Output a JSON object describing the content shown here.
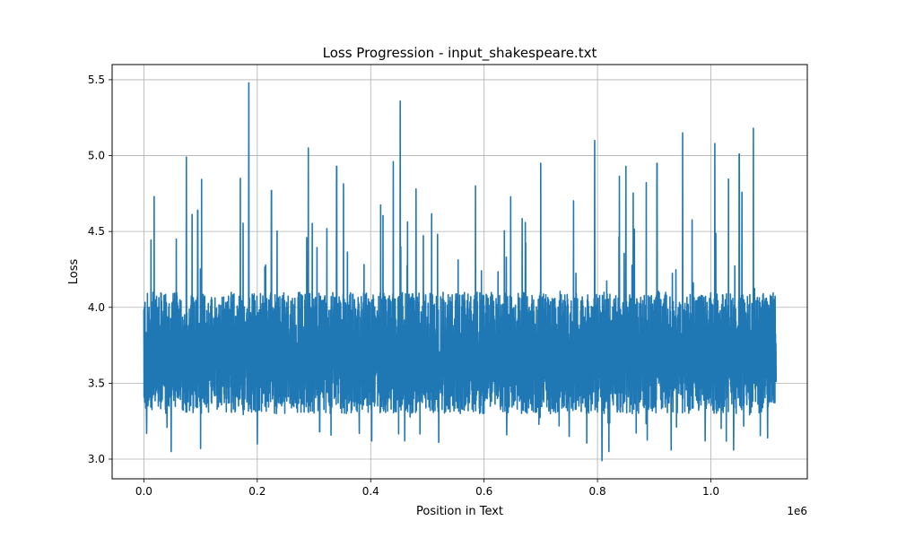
{
  "chart_data": {
    "type": "line",
    "title": "Loss Progression - input_shakespeare.txt",
    "xlabel": "Position in Text",
    "ylabel": "Loss",
    "x_offset_label": "1e6",
    "xlim": [
      -0.056,
      1.17
    ],
    "ylim": [
      2.87,
      5.6
    ],
    "x_ticks": [
      0.0,
      0.2,
      0.4,
      0.6,
      0.8,
      1.0
    ],
    "x_tick_labels": [
      "0.0",
      "0.2",
      "0.4",
      "0.6",
      "0.8",
      "1.0"
    ],
    "y_ticks": [
      3.0,
      3.5,
      4.0,
      4.5,
      5.0,
      5.5
    ],
    "y_tick_labels": [
      "3.0",
      "3.5",
      "4.0",
      "4.5",
      "5.0",
      "5.5"
    ],
    "grid": true,
    "series": [
      {
        "color": "#1f77b4",
        "x_range": [
          0.0,
          1.115
        ],
        "baseline_mean": 3.65,
        "typical_band": [
          3.3,
          4.1
        ],
        "min": 2.99,
        "max": 5.48,
        "peaks": [
          [
            0.018,
            4.73
          ],
          [
            0.075,
            4.99
          ],
          [
            0.095,
            4.64
          ],
          [
            0.17,
            4.85
          ],
          [
            0.185,
            5.48
          ],
          [
            0.225,
            4.77
          ],
          [
            0.29,
            5.05
          ],
          [
            0.34,
            4.93
          ],
          [
            0.38,
            4.59
          ],
          [
            0.44,
            4.96
          ],
          [
            0.452,
            5.36
          ],
          [
            0.48,
            4.78
          ],
          [
            0.52,
            4.87
          ],
          [
            0.585,
            4.8
          ],
          [
            0.64,
            5.24
          ],
          [
            0.7,
            4.95
          ],
          [
            0.795,
            5.1
          ],
          [
            0.85,
            4.93
          ],
          [
            0.905,
            4.95
          ],
          [
            0.95,
            5.15
          ],
          [
            1.007,
            5.08
          ],
          [
            1.05,
            5.01
          ],
          [
            1.075,
            5.18
          ],
          [
            1.1,
            5.0
          ]
        ],
        "troughs": [
          [
            0.005,
            3.17
          ],
          [
            0.048,
            3.05
          ],
          [
            0.1,
            3.07
          ],
          [
            0.2,
            3.1
          ],
          [
            0.31,
            3.18
          ],
          [
            0.38,
            3.17
          ],
          [
            0.46,
            3.12
          ],
          [
            0.52,
            3.11
          ],
          [
            0.64,
            3.16
          ],
          [
            0.75,
            3.15
          ],
          [
            0.808,
            2.99
          ],
          [
            0.82,
            3.05
          ],
          [
            0.93,
            3.06
          ],
          [
            0.99,
            3.12
          ],
          [
            1.04,
            3.06
          ],
          [
            1.1,
            3.14
          ]
        ]
      }
    ]
  }
}
